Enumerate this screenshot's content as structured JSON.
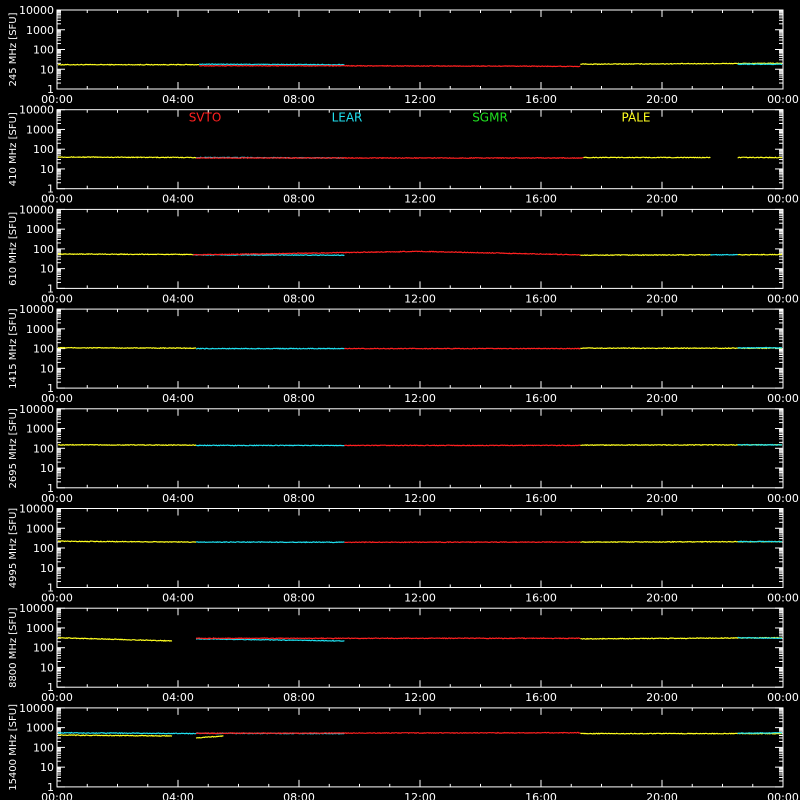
{
  "chart_data": {
    "type": "line",
    "x_tick_labels": [
      "00:00",
      "04:00",
      "08:00",
      "12:00",
      "16:00",
      "20:00",
      "00:00"
    ],
    "x_range_hours": [
      0,
      24
    ],
    "y_scale": "log",
    "y_range": [
      1,
      10000
    ],
    "y_tick_labels": [
      "1",
      "10",
      "100",
      "1000",
      "10000"
    ],
    "legend": [
      {
        "name": "SVTO",
        "color": "#ff2020"
      },
      {
        "name": "LEAR",
        "color": "#20e0f0"
      },
      {
        "name": "SGMR",
        "color": "#20e020"
      },
      {
        "name": "PALE",
        "color": "#ffff20"
      }
    ],
    "panels": [
      {
        "ylabel": "245 MHz [SFU]",
        "baseline": 17,
        "series": [
          {
            "name": "PALE",
            "segments": [
              [
                [
                  0,
                  17
                ],
                [
                  4.7,
                  17
                ]
              ],
              [
                [
                  17.3,
                  18
                ],
                [
                  24,
                  20
                ]
              ]
            ]
          },
          {
            "name": "LEAR",
            "segments": [
              [
                [
                  4.7,
                  18
                ],
                [
                  9.5,
                  17
                ]
              ],
              [
                [
                  22.5,
                  18
                ],
                [
                  24,
                  18
                ]
              ]
            ]
          },
          {
            "name": "SVTO",
            "segments": [
              [
                [
                  4.7,
                  15
                ],
                [
                  9.5,
                  15
                ]
              ],
              [
                [
                  9.5,
                  15
                ],
                [
                  17.3,
                  14
                ]
              ]
            ]
          }
        ]
      },
      {
        "ylabel": "410 MHz [SFU]",
        "baseline": 38,
        "series": [
          {
            "name": "PALE",
            "segments": [
              [
                [
                  0,
                  40
                ],
                [
                  4.6,
                  38
                ]
              ],
              [
                [
                  17.4,
                  38
                ],
                [
                  21.6,
                  38
                ]
              ],
              [
                [
                  22.5,
                  38
                ],
                [
                  24,
                  38
                ]
              ]
            ]
          },
          {
            "name": "LEAR",
            "segments": [
              [
                [
                  4.6,
                  38
                ],
                [
                  9.5,
                  36
                ]
              ]
            ]
          },
          {
            "name": "SVTO",
            "segments": [
              [
                [
                  4.6,
                  36
                ],
                [
                  17.4,
                  36
                ]
              ]
            ]
          }
        ]
      },
      {
        "ylabel": "610 MHz [SFU]",
        "baseline": 50,
        "series": [
          {
            "name": "PALE",
            "segments": [
              [
                [
                  0,
                  55
                ],
                [
                  4.5,
                  52
                ]
              ],
              [
                [
                  17.3,
                  48
                ],
                [
                  21.6,
                  50
                ]
              ],
              [
                [
                  22.5,
                  50
                ],
                [
                  24,
                  52
                ]
              ]
            ]
          },
          {
            "name": "LEAR",
            "segments": [
              [
                [
                  4.5,
                  50
                ],
                [
                  9.5,
                  48
                ]
              ],
              [
                [
                  21.6,
                  50
                ],
                [
                  22.5,
                  50
                ]
              ]
            ]
          },
          {
            "name": "SVTO",
            "segments": [
              [
                [
                  4.5,
                  50
                ],
                [
                  8,
                  60
                ]
              ],
              [
                [
                  8,
                  60
                ],
                [
                  12,
                  75
                ]
              ],
              [
                [
                  12,
                  75
                ],
                [
                  17.3,
                  50
                ]
              ]
            ]
          }
        ]
      },
      {
        "ylabel": "1415 MHz [SFU]",
        "baseline": 100,
        "series": [
          {
            "name": "PALE",
            "segments": [
              [
                [
                  0,
                  110
                ],
                [
                  4.6,
                  105
                ]
              ],
              [
                [
                  17.3,
                  105
                ],
                [
                  24,
                  105
                ]
              ]
            ]
          },
          {
            "name": "LEAR",
            "segments": [
              [
                [
                  4.6,
                  100
                ],
                [
                  9.5,
                  100
                ]
              ],
              [
                [
                  22.5,
                  110
                ],
                [
                  24,
                  110
                ]
              ]
            ]
          },
          {
            "name": "SVTO",
            "segments": [
              [
                [
                  9.5,
                  100
                ],
                [
                  17.3,
                  100
                ]
              ]
            ]
          }
        ]
      },
      {
        "ylabel": "2695 MHz [SFU]",
        "baseline": 140,
        "series": [
          {
            "name": "PALE",
            "segments": [
              [
                [
                  0,
                  150
                ],
                [
                  4.6,
                  145
                ]
              ],
              [
                [
                  17.3,
                  145
                ],
                [
                  24,
                  150
                ]
              ]
            ]
          },
          {
            "name": "LEAR",
            "segments": [
              [
                [
                  4.6,
                  140
                ],
                [
                  9.5,
                  140
                ]
              ],
              [
                [
                  22.5,
                  150
                ],
                [
                  24,
                  150
                ]
              ]
            ]
          },
          {
            "name": "SVTO",
            "segments": [
              [
                [
                  9.5,
                  140
                ],
                [
                  17.3,
                  140
                ]
              ]
            ]
          }
        ]
      },
      {
        "ylabel": "4995 MHz [SFU]",
        "baseline": 200,
        "series": [
          {
            "name": "PALE",
            "segments": [
              [
                [
                  0,
                  220
                ],
                [
                  4.6,
                  200
                ]
              ],
              [
                [
                  17.3,
                  200
                ],
                [
                  24,
                  210
                ]
              ]
            ]
          },
          {
            "name": "LEAR",
            "segments": [
              [
                [
                  4.6,
                  200
                ],
                [
                  9.5,
                  195
                ]
              ],
              [
                [
                  22.5,
                  210
                ],
                [
                  24,
                  210
                ]
              ]
            ]
          },
          {
            "name": "SVTO",
            "segments": [
              [
                [
                  9.5,
                  195
                ],
                [
                  17.3,
                  200
                ]
              ]
            ]
          }
        ]
      },
      {
        "ylabel": "8800 MHz [SFU]",
        "baseline": 300,
        "series": [
          {
            "name": "PALE",
            "segments": [
              [
                [
                  0,
                  320
                ],
                [
                  3.8,
                  220
                ]
              ],
              [
                [
                  17.3,
                  280
                ],
                [
                  24,
                  320
                ]
              ]
            ]
          },
          {
            "name": "LEAR",
            "segments": [
              [
                [
                  4.6,
                  280
                ],
                [
                  9.5,
                  220
                ]
              ],
              [
                [
                  22.5,
                  320
                ],
                [
                  24,
                  300
                ]
              ]
            ]
          },
          {
            "name": "SVTO",
            "segments": [
              [
                [
                  4.6,
                  300
                ],
                [
                  17.3,
                  300
                ]
              ]
            ]
          }
        ]
      },
      {
        "ylabel": "15400 MHz [SFU]",
        "baseline": 550,
        "series": [
          {
            "name": "PALE",
            "segments": [
              [
                [
                  0,
                  420
                ],
                [
                  3.8,
                  380
                ]
              ],
              [
                [
                  4.6,
                  300
                ],
                [
                  5.5,
                  380
                ]
              ],
              [
                [
                  17.3,
                  500
                ],
                [
                  24,
                  500
                ]
              ]
            ]
          },
          {
            "name": "LEAR",
            "segments": [
              [
                [
                  0,
                  550
                ],
                [
                  4.6,
                  500
                ]
              ],
              [
                [
                  4.6,
                  520
                ],
                [
                  9.5,
                  500
                ]
              ],
              [
                [
                  22.5,
                  520
                ],
                [
                  24,
                  550
                ]
              ]
            ]
          },
          {
            "name": "SVTO",
            "segments": [
              [
                [
                  4.6,
                  520
                ],
                [
                  17.3,
                  550
                ]
              ]
            ]
          }
        ]
      }
    ]
  }
}
